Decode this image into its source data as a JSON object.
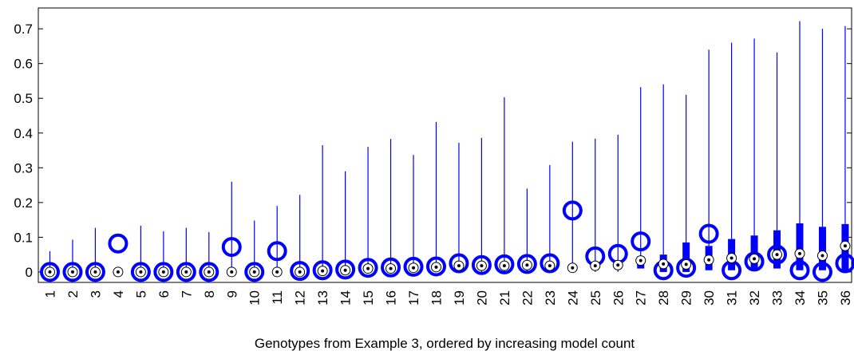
{
  "chart_data": {
    "type": "boxplot",
    "title": "",
    "xlabel": "Genotypes from Example 3, ordered by increasing model count",
    "ylabel": "",
    "ylim": [
      -0.03,
      0.76
    ],
    "yticks": [
      0,
      0.1,
      0.2,
      0.3,
      0.4,
      0.5,
      0.6,
      0.7
    ],
    "ytick_labels": [
      "0",
      "0.1",
      "0.2",
      "0.3",
      "0.4",
      "0.5",
      "0.6",
      "0.7"
    ],
    "grid": false,
    "color": "#0000ff",
    "categories": [
      "1",
      "2",
      "3",
      "4",
      "5",
      "6",
      "7",
      "8",
      "9",
      "10",
      "11",
      "12",
      "13",
      "14",
      "15",
      "16",
      "17",
      "18",
      "19",
      "20",
      "21",
      "22",
      "23",
      "24",
      "25",
      "26",
      "27",
      "28",
      "29",
      "30",
      "31",
      "32",
      "33",
      "34",
      "35",
      "36"
    ],
    "series": [
      {
        "whisker_high": [
          0.06,
          0.093,
          0.127,
          0.0,
          0.133,
          0.117,
          0.127,
          0.115,
          0.26,
          0.148,
          0.19,
          0.222,
          0.365,
          0.29,
          0.36,
          0.383,
          0.337,
          0.432,
          0.372,
          0.386,
          0.503,
          0.24,
          0.308,
          0.375,
          0.384,
          0.395,
          0.532,
          0.54,
          0.51,
          0.64,
          0.66,
          0.672,
          0.632,
          0.722,
          0.7,
          0.708
        ],
        "q3": [
          0.0,
          0.0,
          0.0,
          0.0,
          0.0,
          0.0,
          0.0,
          0.0,
          0.0,
          0.0,
          0.0,
          0.0,
          0.0,
          0.0,
          0.0,
          0.0,
          0.0,
          0.0,
          0.0,
          0.0,
          0.0,
          0.0,
          0.0,
          0.0,
          0.0,
          0.0,
          0.045,
          0.05,
          0.085,
          0.075,
          0.095,
          0.105,
          0.12,
          0.14,
          0.13,
          0.138
        ],
        "median": [
          0.0,
          0.0,
          0.0,
          0.0,
          0.0,
          0.0,
          0.0,
          0.0,
          0.0,
          0.0,
          0.0,
          0.0,
          0.003,
          0.005,
          0.01,
          0.01,
          0.012,
          0.014,
          0.018,
          0.018,
          0.018,
          0.02,
          0.018,
          0.012,
          0.018,
          0.02,
          0.033,
          0.023,
          0.022,
          0.035,
          0.04,
          0.038,
          0.05,
          0.053,
          0.047,
          0.075
        ],
        "q1": [
          0.0,
          0.0,
          0.0,
          0.0,
          0.0,
          0.0,
          0.0,
          0.0,
          0.0,
          0.0,
          0.0,
          0.0,
          0.0,
          0.0,
          0.0,
          0.0,
          0.0,
          0.0,
          0.0,
          0.0,
          0.0,
          0.0,
          0.0,
          0.0,
          0.0,
          0.0,
          0.01,
          0.0,
          0.0,
          0.005,
          0.005,
          0.01,
          0.01,
          0.005,
          0.005,
          0.005
        ],
        "mean": [
          0.0,
          0.0,
          0.0,
          0.082,
          0.0,
          0.0,
          0.0,
          0.0,
          0.072,
          0.0,
          0.06,
          0.003,
          0.005,
          0.007,
          0.012,
          0.013,
          0.015,
          0.016,
          0.025,
          0.02,
          0.022,
          0.023,
          0.025,
          0.177,
          0.045,
          0.052,
          0.088,
          0.005,
          0.012,
          0.11,
          0.005,
          0.03,
          0.05,
          0.005,
          0.0,
          0.025
        ]
      }
    ]
  }
}
